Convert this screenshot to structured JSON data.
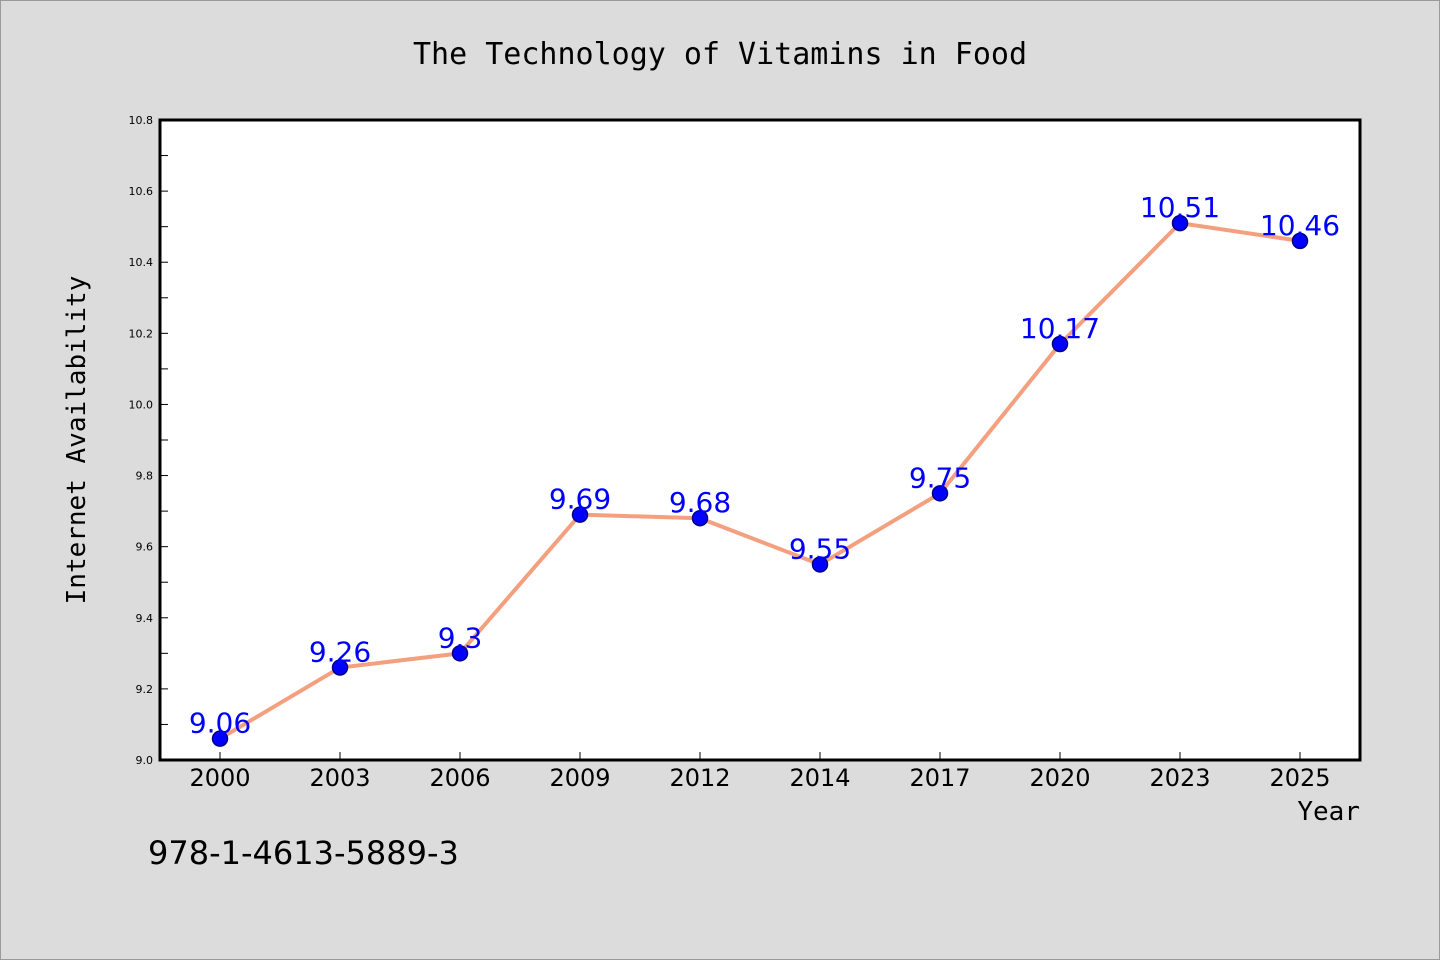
{
  "chart_data": {
    "type": "line",
    "title": "The Technology of Vitamins in Food",
    "xlabel": "Year",
    "ylabel": "Internet Availability",
    "categories": [
      "2000",
      "2003",
      "2006",
      "2009",
      "2012",
      "2014",
      "2017",
      "2020",
      "2023",
      "2025"
    ],
    "series": [
      {
        "values": [
          9.06,
          9.26,
          9.3,
          9.69,
          9.68,
          9.55,
          9.75,
          10.17,
          10.51,
          10.46
        ],
        "data_labels": [
          "9.06",
          "9.26",
          "9.3",
          "9.69",
          "9.68",
          "9.55",
          "9.75",
          "10.17",
          "10.51",
          "10.46"
        ]
      }
    ],
    "ylim": [
      9.0,
      10.8
    ],
    "yticks": [
      "9.0",
      "9.2",
      "9.4",
      "9.6",
      "9.8",
      "10.0",
      "10.2",
      "10.4",
      "10.6",
      "10.8"
    ],
    "grid": false,
    "legend": "none",
    "annotation": "978-1-4613-5889-3",
    "colors": {
      "line": "#f4a07e",
      "marker_fill": "#0000ff",
      "marker_edge": "#000080",
      "data_label": "#0000ff",
      "background": "#dcdcdc",
      "plot_background": "#ffffff"
    }
  }
}
